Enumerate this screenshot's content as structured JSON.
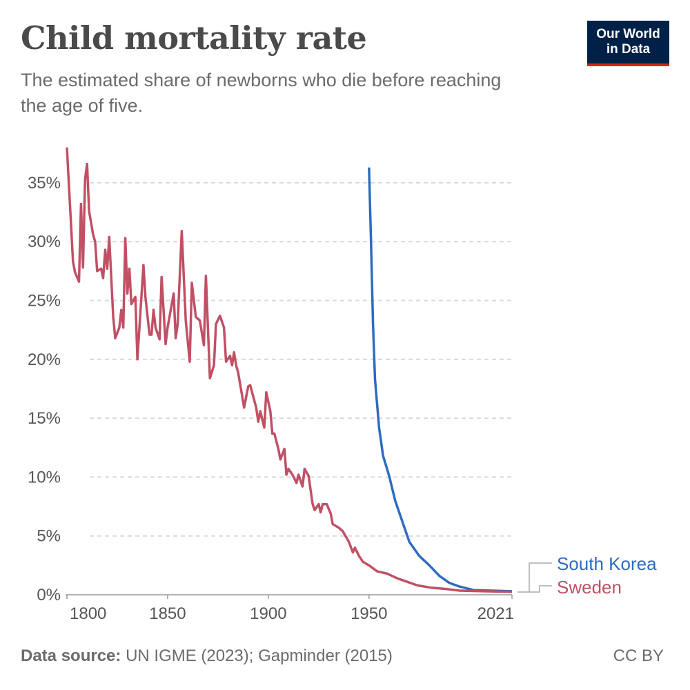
{
  "header": {
    "title": "Child mortality rate",
    "subtitle": "The estimated share of newborns who die before reaching the age of five."
  },
  "logo": {
    "line1": "Our World",
    "line2": "in Data",
    "bg_color": "#002147",
    "accent_color": "#ce261e"
  },
  "footer": {
    "source_label": "Data source:",
    "source_text": "UN IGME (2023); Gapminder (2015)",
    "license": "CC BY"
  },
  "chart_data": {
    "type": "line",
    "title": "Child mortality rate",
    "xlim": [
      1800,
      2021
    ],
    "ylim": [
      0,
      38
    ],
    "x_ticks": [
      1800,
      1850,
      1900,
      1950,
      2021
    ],
    "x_tick_labels": [
      "1800",
      "1850",
      "1900",
      "1950",
      "2021"
    ],
    "y_ticks": [
      0,
      5,
      10,
      15,
      20,
      25,
      30,
      35
    ],
    "y_tick_labels": [
      "0%",
      "5%",
      "10%",
      "15%",
      "20%",
      "25%",
      "30%",
      "35%"
    ],
    "grid": "horizontal dashed",
    "legend": "right, at line ends",
    "series": [
      {
        "name": "South Korea",
        "color": "#2d6cc0",
        "points": [
          [
            1950,
            36.3
          ],
          [
            1951,
            30
          ],
          [
            1952,
            23
          ],
          [
            1953,
            18.3
          ],
          [
            1955,
            14.2
          ],
          [
            1957,
            11.8
          ],
          [
            1960,
            10.1
          ],
          [
            1963,
            8.0
          ],
          [
            1967,
            6.0
          ],
          [
            1970,
            4.5
          ],
          [
            1975,
            3.3
          ],
          [
            1980,
            2.5
          ],
          [
            1985,
            1.6
          ],
          [
            1990,
            1.0
          ],
          [
            1995,
            0.7
          ],
          [
            2002,
            0.4
          ],
          [
            2021,
            0.3
          ]
        ]
      },
      {
        "name": "Sweden",
        "color": "#c15065",
        "points": [
          [
            1800,
            38.0
          ],
          [
            1803,
            28.3
          ],
          [
            1804,
            27.4
          ],
          [
            1806,
            26.6
          ],
          [
            1807,
            33.2
          ],
          [
            1808,
            27.8
          ],
          [
            1809,
            35.3
          ],
          [
            1810,
            36.6
          ],
          [
            1811,
            32.6
          ],
          [
            1813,
            30.6
          ],
          [
            1814,
            30.0
          ],
          [
            1815,
            27.5
          ],
          [
            1817,
            27.7
          ],
          [
            1818,
            26.9
          ],
          [
            1819,
            29.3
          ],
          [
            1820,
            27.7
          ],
          [
            1821,
            30.4
          ],
          [
            1823,
            23.6
          ],
          [
            1824,
            21.8
          ],
          [
            1826,
            22.7
          ],
          [
            1827,
            24.2
          ],
          [
            1828,
            22.7
          ],
          [
            1829,
            30.3
          ],
          [
            1830,
            25.6
          ],
          [
            1831,
            27.7
          ],
          [
            1832,
            24.7
          ],
          [
            1834,
            25.3
          ],
          [
            1835,
            20.0
          ],
          [
            1838,
            28.0
          ],
          [
            1839,
            25.3
          ],
          [
            1841,
            22.1
          ],
          [
            1842,
            22.1
          ],
          [
            1843,
            24.2
          ],
          [
            1844,
            22.7
          ],
          [
            1846,
            21.7
          ],
          [
            1847,
            27.0
          ],
          [
            1849,
            21.3
          ],
          [
            1850,
            22.7
          ],
          [
            1853,
            25.6
          ],
          [
            1854,
            21.8
          ],
          [
            1855,
            23.0
          ],
          [
            1857,
            30.9
          ],
          [
            1859,
            23.3
          ],
          [
            1861,
            19.8
          ],
          [
            1862,
            26.5
          ],
          [
            1864,
            23.6
          ],
          [
            1866,
            23.3
          ],
          [
            1868,
            21.2
          ],
          [
            1869,
            27.1
          ],
          [
            1871,
            18.4
          ],
          [
            1873,
            19.5
          ],
          [
            1874,
            23.0
          ],
          [
            1876,
            23.7
          ],
          [
            1878,
            22.7
          ],
          [
            1879,
            19.8
          ],
          [
            1881,
            20.3
          ],
          [
            1882,
            19.5
          ],
          [
            1883,
            20.6
          ],
          [
            1884,
            19.5
          ],
          [
            1885,
            18.9
          ],
          [
            1888,
            15.9
          ],
          [
            1890,
            17.7
          ],
          [
            1891,
            17.8
          ],
          [
            1894,
            15.9
          ],
          [
            1895,
            14.7
          ],
          [
            1896,
            15.6
          ],
          [
            1898,
            14.2
          ],
          [
            1899,
            17.2
          ],
          [
            1901,
            15.6
          ],
          [
            1902,
            13.7
          ],
          [
            1903,
            13.7
          ],
          [
            1905,
            12.4
          ],
          [
            1906,
            11.5
          ],
          [
            1908,
            12.4
          ],
          [
            1909,
            10.2
          ],
          [
            1910,
            10.7
          ],
          [
            1912,
            10.2
          ],
          [
            1914,
            9.5
          ],
          [
            1915,
            10.2
          ],
          [
            1917,
            9.2
          ],
          [
            1918,
            10.7
          ],
          [
            1920,
            10.1
          ],
          [
            1922,
            7.7
          ],
          [
            1923,
            7.2
          ],
          [
            1925,
            7.7
          ],
          [
            1926,
            7.0
          ],
          [
            1927,
            7.7
          ],
          [
            1929,
            7.7
          ],
          [
            1931,
            6.9
          ],
          [
            1932,
            6.0
          ],
          [
            1935,
            5.7
          ],
          [
            1937,
            5.4
          ],
          [
            1940,
            4.5
          ],
          [
            1942,
            3.6
          ],
          [
            1943,
            4.0
          ],
          [
            1945,
            3.3
          ],
          [
            1947,
            2.8
          ],
          [
            1950,
            2.5
          ],
          [
            1954,
            2.0
          ],
          [
            1959,
            1.8
          ],
          [
            1964,
            1.4
          ],
          [
            1969,
            1.1
          ],
          [
            1974,
            0.8
          ],
          [
            1981,
            0.6
          ],
          [
            1988,
            0.5
          ],
          [
            1995,
            0.35
          ],
          [
            2007,
            0.3
          ],
          [
            2021,
            0.25
          ]
        ]
      }
    ]
  }
}
